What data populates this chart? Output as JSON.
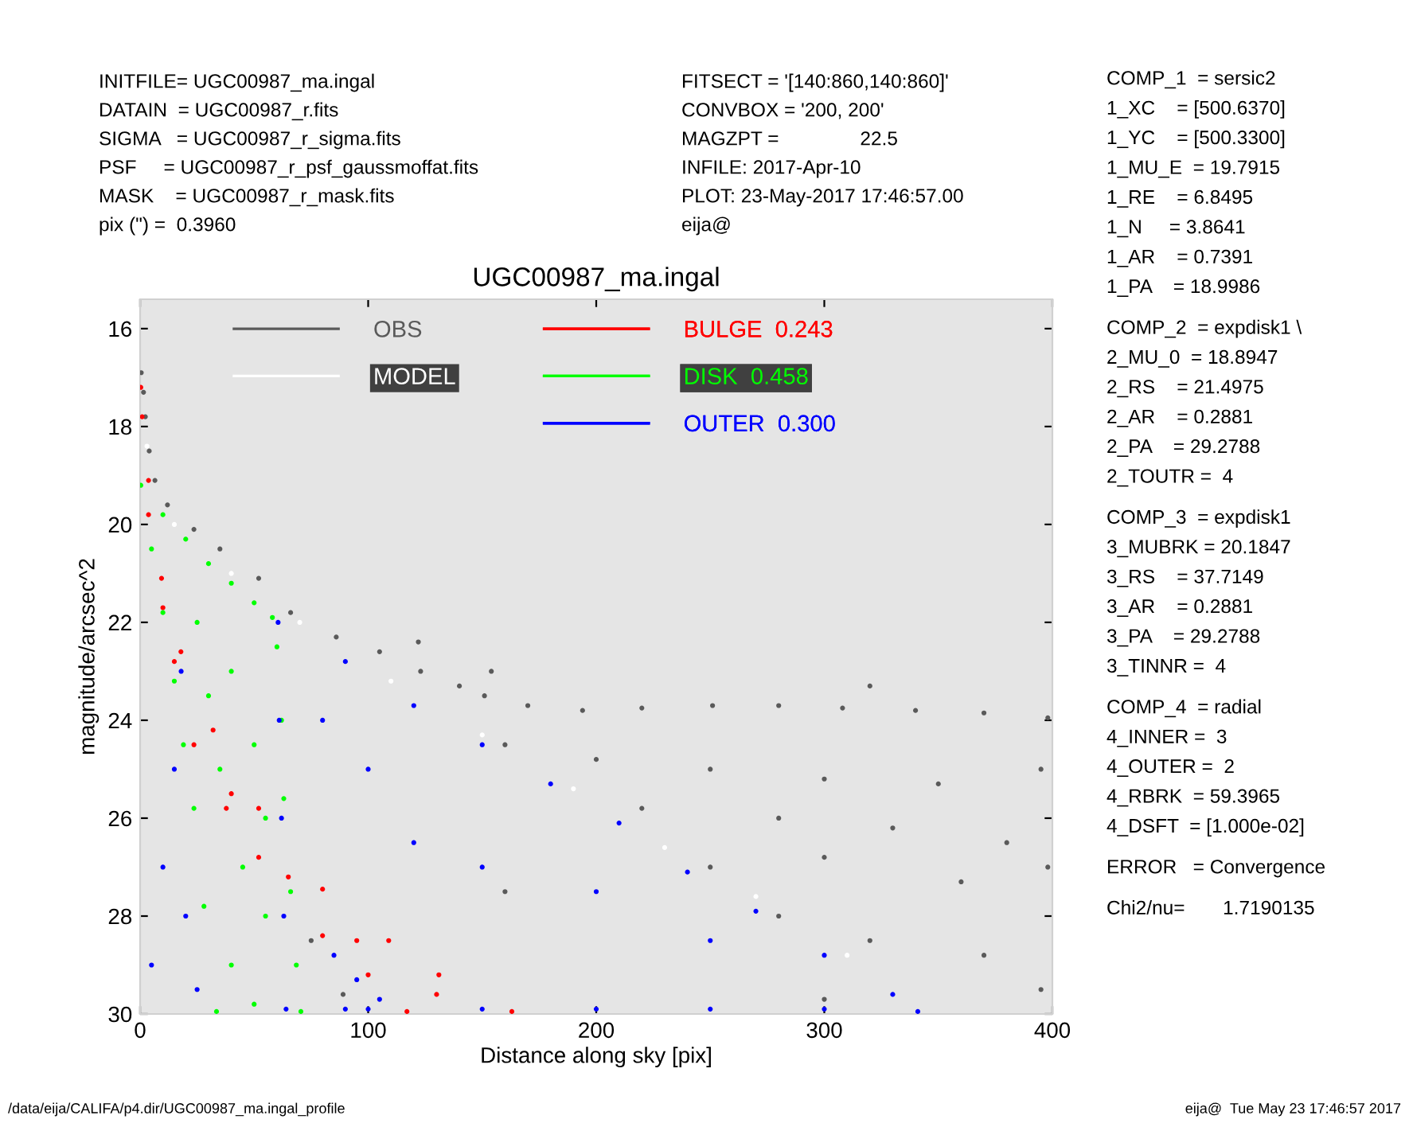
{
  "chart_data": {
    "type": "scatter",
    "title": "UGC00987_ma.ingal",
    "xlabel": "Distance along sky [pix]",
    "ylabel": "magnitude/arcsec^2",
    "xlim": [
      0,
      400
    ],
    "xticks": [
      0,
      100,
      200,
      300,
      400
    ],
    "ylim": [
      30,
      15.4
    ],
    "yticks": [
      16,
      18,
      20,
      22,
      24,
      26,
      28,
      30
    ],
    "marker": "circle",
    "legend": "top",
    "grid": false,
    "series": [
      {
        "name": "OBS",
        "color": "#5a5a5a",
        "x": [
          0.5,
          1.5,
          2.3,
          4,
          6.5,
          12,
          23.6,
          35,
          52,
          66,
          86,
          105,
          123,
          140,
          151,
          170,
          194,
          220,
          251,
          280,
          308,
          340,
          370,
          398,
          122,
          154,
          320,
          160,
          200,
          250,
          300,
          350,
          395,
          220,
          280,
          330,
          380,
          250,
          300,
          360,
          398,
          280,
          320,
          370,
          395,
          300,
          75,
          89,
          160
        ],
        "values": [
          16.9,
          17.3,
          17.8,
          18.5,
          19.1,
          19.6,
          20.1,
          20.5,
          21.1,
          21.8,
          22.3,
          22.6,
          23.0,
          23.3,
          23.5,
          23.7,
          23.8,
          23.75,
          23.7,
          23.7,
          23.75,
          23.8,
          23.85,
          23.95,
          22.4,
          23.0,
          23.3,
          24.5,
          24.8,
          25.0,
          25.2,
          25.3,
          25.0,
          25.8,
          26.0,
          26.2,
          26.5,
          27.0,
          26.8,
          27.3,
          27.0,
          28.0,
          28.5,
          28.8,
          29.5,
          29.7,
          28.5,
          29.6,
          27.5
        ]
      },
      {
        "name": "MODEL",
        "color": "#ffffff",
        "x": [
          3,
          15,
          40,
          70,
          110,
          150,
          190,
          230,
          270,
          310
        ],
        "values": [
          18.4,
          20,
          21,
          22,
          23.2,
          24.3,
          25.4,
          26.6,
          27.6,
          28.8
        ]
      },
      {
        "name": "BULGE  0.243",
        "color": "#ff0000",
        "x": [
          0.3,
          3.7,
          9.4,
          17.9,
          32,
          52,
          80,
          109,
          131,
          163,
          0.9,
          3.7,
          10,
          23.6,
          37.8,
          52,
          80,
          100,
          117,
          15,
          40,
          65,
          95,
          130
        ],
        "values": [
          17.2,
          19.1,
          21.1,
          22.6,
          24.2,
          25.8,
          27.45,
          28.5,
          29.2,
          29.95,
          17.8,
          19.8,
          21.7,
          24.5,
          25.8,
          26.8,
          28.4,
          29.2,
          29.95,
          22.8,
          25.5,
          27.2,
          28.5,
          29.6
        ]
      },
      {
        "name": "DISK  0.458",
        "color": "#00ff00",
        "x": [
          0.3,
          10,
          20,
          30,
          40,
          50,
          58,
          60,
          62,
          63,
          66,
          68.5,
          70.5,
          5,
          10,
          15,
          19,
          23.6,
          28,
          33.5,
          25,
          40,
          50,
          35,
          45,
          55,
          40,
          50,
          30,
          55
        ],
        "values": [
          19.2,
          19.8,
          20.3,
          20.8,
          21.2,
          21.6,
          21.9,
          22.5,
          24,
          25.6,
          27.5,
          29,
          29.95,
          20.5,
          21.8,
          23.2,
          24.5,
          25.8,
          27.8,
          29.95,
          22,
          23,
          24.5,
          25,
          27,
          28,
          29,
          29.8,
          23.5,
          26
        ]
      },
      {
        "name": "OUTER  0.300",
        "color": "#0000ff",
        "x": [
          60.5,
          90,
          120,
          150,
          180,
          210,
          240,
          270,
          300,
          330,
          341,
          61,
          62,
          63,
          64,
          100,
          150,
          200,
          250,
          300,
          100,
          150,
          200,
          250,
          120,
          80,
          5,
          10,
          15,
          18,
          20,
          25,
          85,
          95,
          105,
          90
        ],
        "values": [
          22.0,
          22.8,
          23.7,
          24.5,
          25.3,
          26.1,
          27.1,
          27.9,
          28.8,
          29.6,
          29.95,
          24,
          26,
          28,
          29.9,
          29.9,
          29.9,
          29.9,
          29.9,
          29.9,
          25,
          27,
          27.5,
          28.5,
          26.5,
          24,
          29,
          27,
          25,
          23,
          28,
          29.5,
          28.8,
          29.3,
          29.7,
          29.9
        ]
      }
    ],
    "annotations": [
      "INITFILE= UGC00987_ma.ingal",
      "DATAIN  = UGC00987_r.fits",
      "SIGMA   = UGC00987_r_sigma.fits",
      "PSF     = UGC00987_r_psf_gaussmoffat.fits",
      "MASK    = UGC00987_r_mask.fits",
      "pix (\") =  0.3960",
      "FITSECT = '[140:860,140:860]'",
      "CONVBOX = '200, 200'",
      "MAGZPT =               22.5",
      "INFILE: 2017-Apr-10",
      "PLOT: 23-May-2017 17:46:57.00",
      "eija@",
      "COMP_1  = sersic2",
      "1_XC    = [500.6370]",
      "1_YC    = [500.3300]",
      "1_MU_E  = 19.7915",
      "1_RE    = 6.8495",
      "1_N     = 3.8641",
      "1_AR    = 0.7391",
      "1_PA    = 18.9986",
      "COMP_2  = expdisk1 \\",
      "2_MU_0  = 18.8947",
      "2_RS    = 21.4975",
      "2_AR    = 0.2881",
      "2_PA    = 29.2788",
      "2_TOUTR =  4",
      "COMP_3  = expdisk1",
      "3_MUBRK = 20.1847",
      "3_RS    = 37.7149",
      "3_AR    = 0.2881",
      "3_PA    = 29.2788",
      "3_TINNR =  4",
      "COMP_4  = radial",
      "4_INNER =  3",
      "4_OUTER =  2",
      "4_RBRK  = 59.3965",
      "4_DSFT  = [1.000e-02]",
      "ERROR   = Convergence",
      "Chi2/nu=       1.7190135",
      "/data/eija/CALIFA/p4.dir/UGC00987_ma.ingal_profile",
      "eija@  Tue May 23 17:46:57 2017"
    ]
  }
}
